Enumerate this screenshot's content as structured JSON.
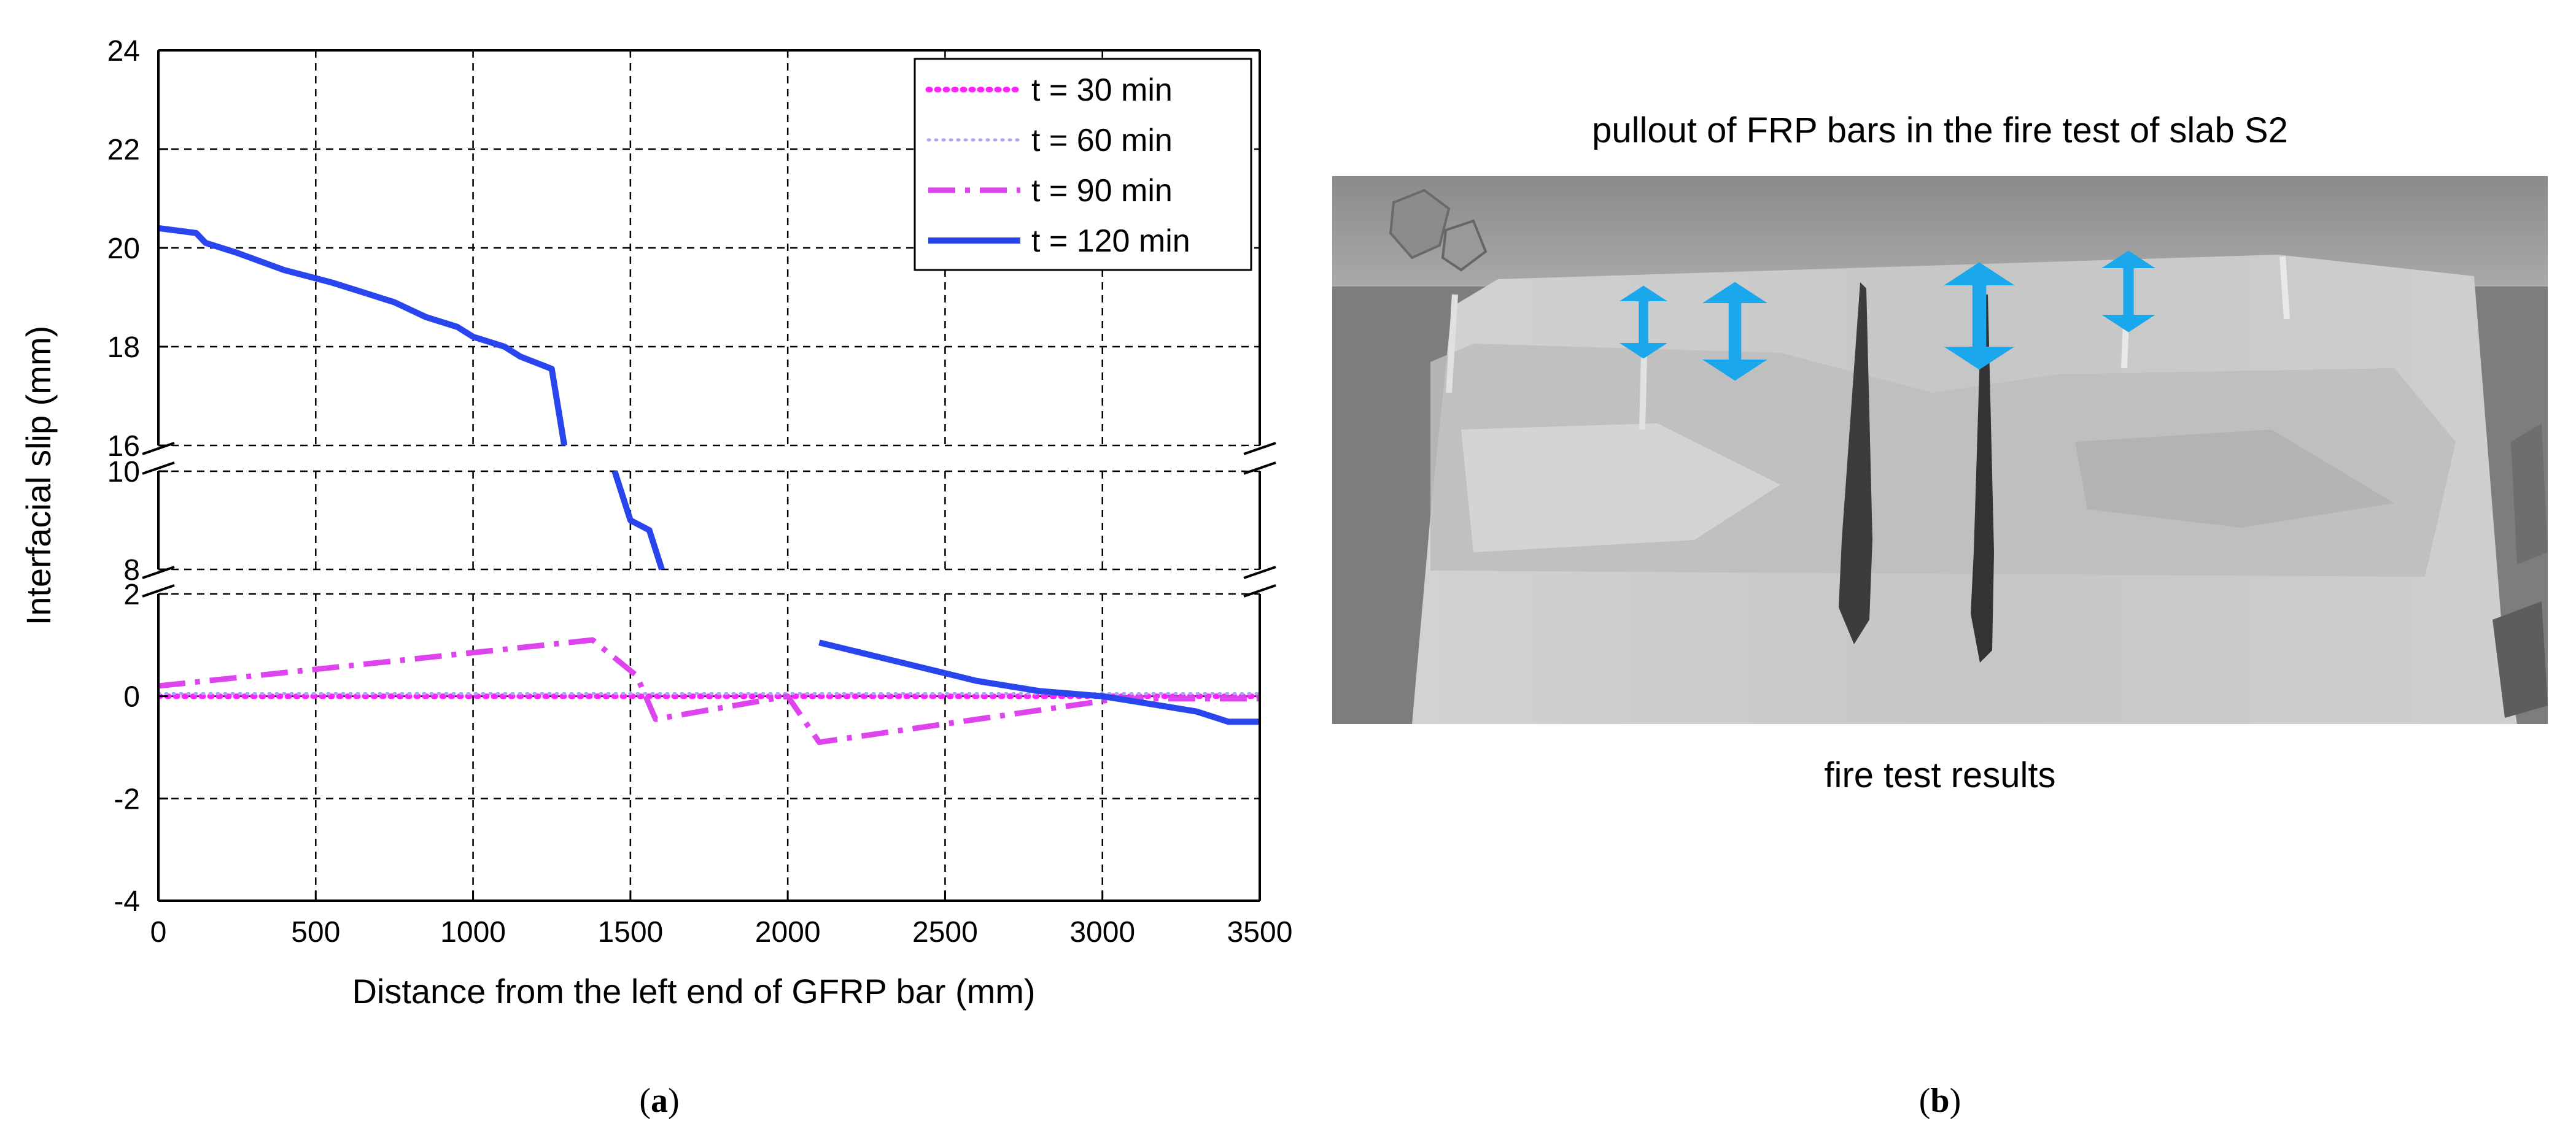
{
  "panel_a": {
    "label_open": "(",
    "label_letter": "a",
    "label_close": ")"
  },
  "panel_b": {
    "photo_title": "pullout of FRP bars in the fire test of slab S2",
    "photo_caption": "fire test results",
    "label_open": "(",
    "label_letter": "b",
    "label_close": ")",
    "arrow_color": "#1aa7ec",
    "arrow_count": 4
  },
  "chart_data": {
    "type": "line",
    "title": "",
    "xlabel": "Distance from the left end of GFRP bar (mm)",
    "ylabel": "Interfacial slip (mm)",
    "xlim": [
      0,
      3500
    ],
    "x_ticks": [
      "0",
      "500",
      "1000",
      "1500",
      "2000",
      "2500",
      "3000",
      "3500"
    ],
    "y_axis_segments": [
      {
        "range": [
          16,
          24
        ],
        "ticks": [
          "16",
          "18",
          "20",
          "22",
          "24"
        ]
      },
      {
        "range": [
          8,
          10
        ],
        "ticks": [
          "8",
          "10"
        ]
      },
      {
        "range": [
          -4,
          2
        ],
        "ticks": [
          "-4",
          "-2",
          "0",
          "2"
        ]
      }
    ],
    "axis_break_marks": true,
    "grid": true,
    "legend_position": "top-right",
    "series": [
      {
        "name": "t = 30 min",
        "color": "#ff22ff",
        "style": "dotted",
        "points": [
          [
            0,
            0.0
          ],
          [
            3500,
            0.0
          ]
        ]
      },
      {
        "name": "t = 60 min",
        "color": "#a8a8f0",
        "style": "dotted-thin",
        "points": [
          [
            0,
            0.05
          ],
          [
            3500,
            0.05
          ]
        ]
      },
      {
        "name": "t = 90 min",
        "color": "#dd44ee",
        "style": "dash-dot",
        "points": [
          [
            0,
            0.2
          ],
          [
            1380,
            1.1
          ],
          [
            1520,
            0.4
          ],
          [
            1580,
            -0.45
          ],
          [
            2000,
            0.0
          ],
          [
            2100,
            -0.9
          ],
          [
            3050,
            -0.05
          ],
          [
            3500,
            -0.05
          ]
        ]
      },
      {
        "name": "t = 120 min",
        "color": "#2946ee",
        "style": "solid",
        "points": [
          [
            0,
            20.4
          ],
          [
            120,
            20.3
          ],
          [
            150,
            20.1
          ],
          [
            250,
            19.9
          ],
          [
            400,
            19.55
          ],
          [
            550,
            19.3
          ],
          [
            650,
            19.1
          ],
          [
            750,
            18.9
          ],
          [
            850,
            18.6
          ],
          [
            950,
            18.4
          ],
          [
            1000,
            18.2
          ],
          [
            1100,
            18.0
          ],
          [
            1150,
            17.8
          ],
          [
            1250,
            17.55
          ],
          [
            1290,
            16.0
          ],
          [
            1450,
            10.0
          ],
          [
            1500,
            9.0
          ],
          [
            1560,
            8.8
          ],
          [
            1600,
            8.0
          ],
          [
            2050,
            2.2
          ],
          [
            2100,
            1.05
          ],
          [
            2200,
            0.9
          ],
          [
            2300,
            0.75
          ],
          [
            2400,
            0.6
          ],
          [
            2500,
            0.45
          ],
          [
            2600,
            0.3
          ],
          [
            2700,
            0.2
          ],
          [
            2800,
            0.1
          ],
          [
            2900,
            0.05
          ],
          [
            3000,
            0.0
          ],
          [
            3100,
            -0.1
          ],
          [
            3200,
            -0.2
          ],
          [
            3300,
            -0.3
          ],
          [
            3400,
            -0.5
          ],
          [
            3500,
            -0.5
          ]
        ]
      }
    ]
  }
}
